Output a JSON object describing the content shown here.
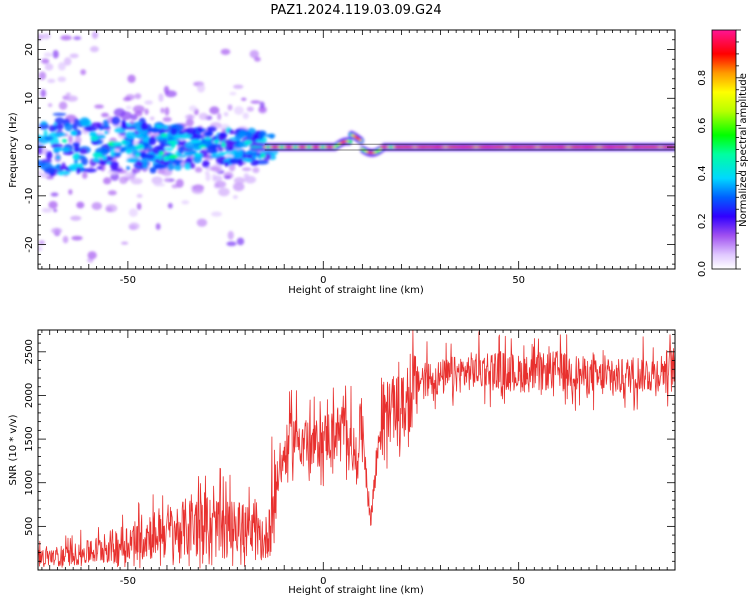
{
  "figure_title": "PAZ1.2024.119.03.09.G24",
  "chart_data": [
    {
      "type": "heatmap",
      "xlabel": "Height of straight line (km)",
      "ylabel": "Frequency (Hz)",
      "xlim": [
        -73,
        90
      ],
      "ylim": [
        -25,
        24
      ],
      "x_ticks": [
        -50,
        0,
        50
      ],
      "y_ticks": [
        -20,
        -10,
        0,
        10,
        20
      ],
      "colorbar": {
        "label": "Normalized spectral amplitude",
        "range": [
          0,
          1
        ],
        "ticks": [
          0.0,
          0.2,
          0.4,
          0.6,
          0.8
        ],
        "tick_labels": [
          "0.0",
          "0.2",
          "0.4",
          "0.6",
          "0.8"
        ],
        "colormap": [
          "#ffffff",
          "#cc99ff",
          "#8a2be2",
          "#0000ff",
          "#00e5ff",
          "#00ff00",
          "#ffff00",
          "#ff8800",
          "#ff0000",
          "#ff1493"
        ]
      },
      "description_of_features": {
        "dominant_line_freq_hz": 0,
        "left_scatter_x_range": [
          -73,
          -15
        ],
        "left_scatter_freq_range": [
          -25,
          24
        ],
        "core_high_amplitude_x_range": [
          -15,
          90
        ]
      }
    },
    {
      "type": "line",
      "xlabel": "Height of straight line (km)",
      "ylabel": "SNR (10 * v/v)",
      "xlim": [
        -73,
        90
      ],
      "ylim": [
        0,
        2750
      ],
      "x_ticks": [
        -50,
        0,
        50
      ],
      "y_ticks": [
        500,
        1000,
        1500,
        2000,
        2500
      ],
      "color": "#e8302e",
      "series": [
        {
          "x": [
            -73,
            -70,
            -65,
            -60,
            -55,
            -50,
            -45,
            -40,
            -35,
            -30,
            -25,
            -20,
            -15,
            -13,
            -12,
            -10,
            -8,
            -5,
            -3,
            0,
            2,
            5,
            7,
            8,
            9,
            10,
            12,
            15,
            18,
            20,
            22,
            23,
            25,
            30,
            35,
            40,
            45,
            50,
            55,
            60,
            65,
            70,
            75,
            80,
            85,
            90
          ],
          "y": [
            150,
            150,
            170,
            200,
            260,
            320,
            400,
            450,
            480,
            500,
            470,
            450,
            300,
            700,
            1000,
            1300,
            1550,
            1500,
            1400,
            1500,
            1550,
            1600,
            1550,
            1200,
            1500,
            1700,
            550,
            1800,
            1850,
            1850,
            1900,
            2050,
            2200,
            2200,
            2250,
            2300,
            2300,
            2250,
            2250,
            2300,
            2250,
            2200,
            2200,
            2250,
            2250,
            2350
          ]
        }
      ]
    }
  ]
}
